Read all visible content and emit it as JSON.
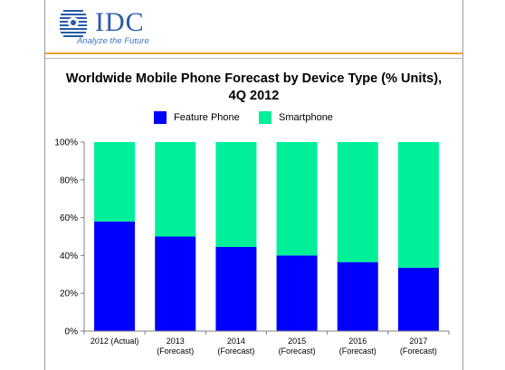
{
  "logo": {
    "text": "IDC",
    "tagline": "Analyze the Future",
    "colors": {
      "text": "#2a5aa8",
      "tagline": "#3a78c8",
      "globe": "#2a5aa8"
    }
  },
  "colors": {
    "feature_phone": "#0000ff",
    "smartphone": "#00f09a",
    "orange_rule": "#f0a030",
    "axis": "#808080",
    "grid": "#c0c0c0"
  },
  "chart_data": {
    "type": "bar",
    "stacked": true,
    "title_line1": "Worldwide Mobile Phone Forecast by Device Type (% Units),",
    "title_line2": "4Q 2012",
    "categories": [
      [
        "2012 (Actual)"
      ],
      [
        "2013",
        "(Forecast)"
      ],
      [
        "2014",
        "(Forecast)"
      ],
      [
        "2015",
        "(Forecast)"
      ],
      [
        "2016",
        "(Forecast)"
      ],
      [
        "2017",
        "(Forecast)"
      ]
    ],
    "series": [
      {
        "name": "Feature Phone",
        "color": "#0000ff",
        "values": [
          58,
          50,
          44.5,
          40,
          36.5,
          33.5
        ]
      },
      {
        "name": "Smartphone",
        "color": "#00f09a",
        "values": [
          42,
          50,
          55.5,
          60,
          63.5,
          66.5
        ]
      }
    ],
    "ylim": [
      0,
      100
    ],
    "yticks": [
      "0%",
      "20%",
      "40%",
      "60%",
      "80%",
      "100%"
    ],
    "legend_position": "top",
    "grid": false
  }
}
